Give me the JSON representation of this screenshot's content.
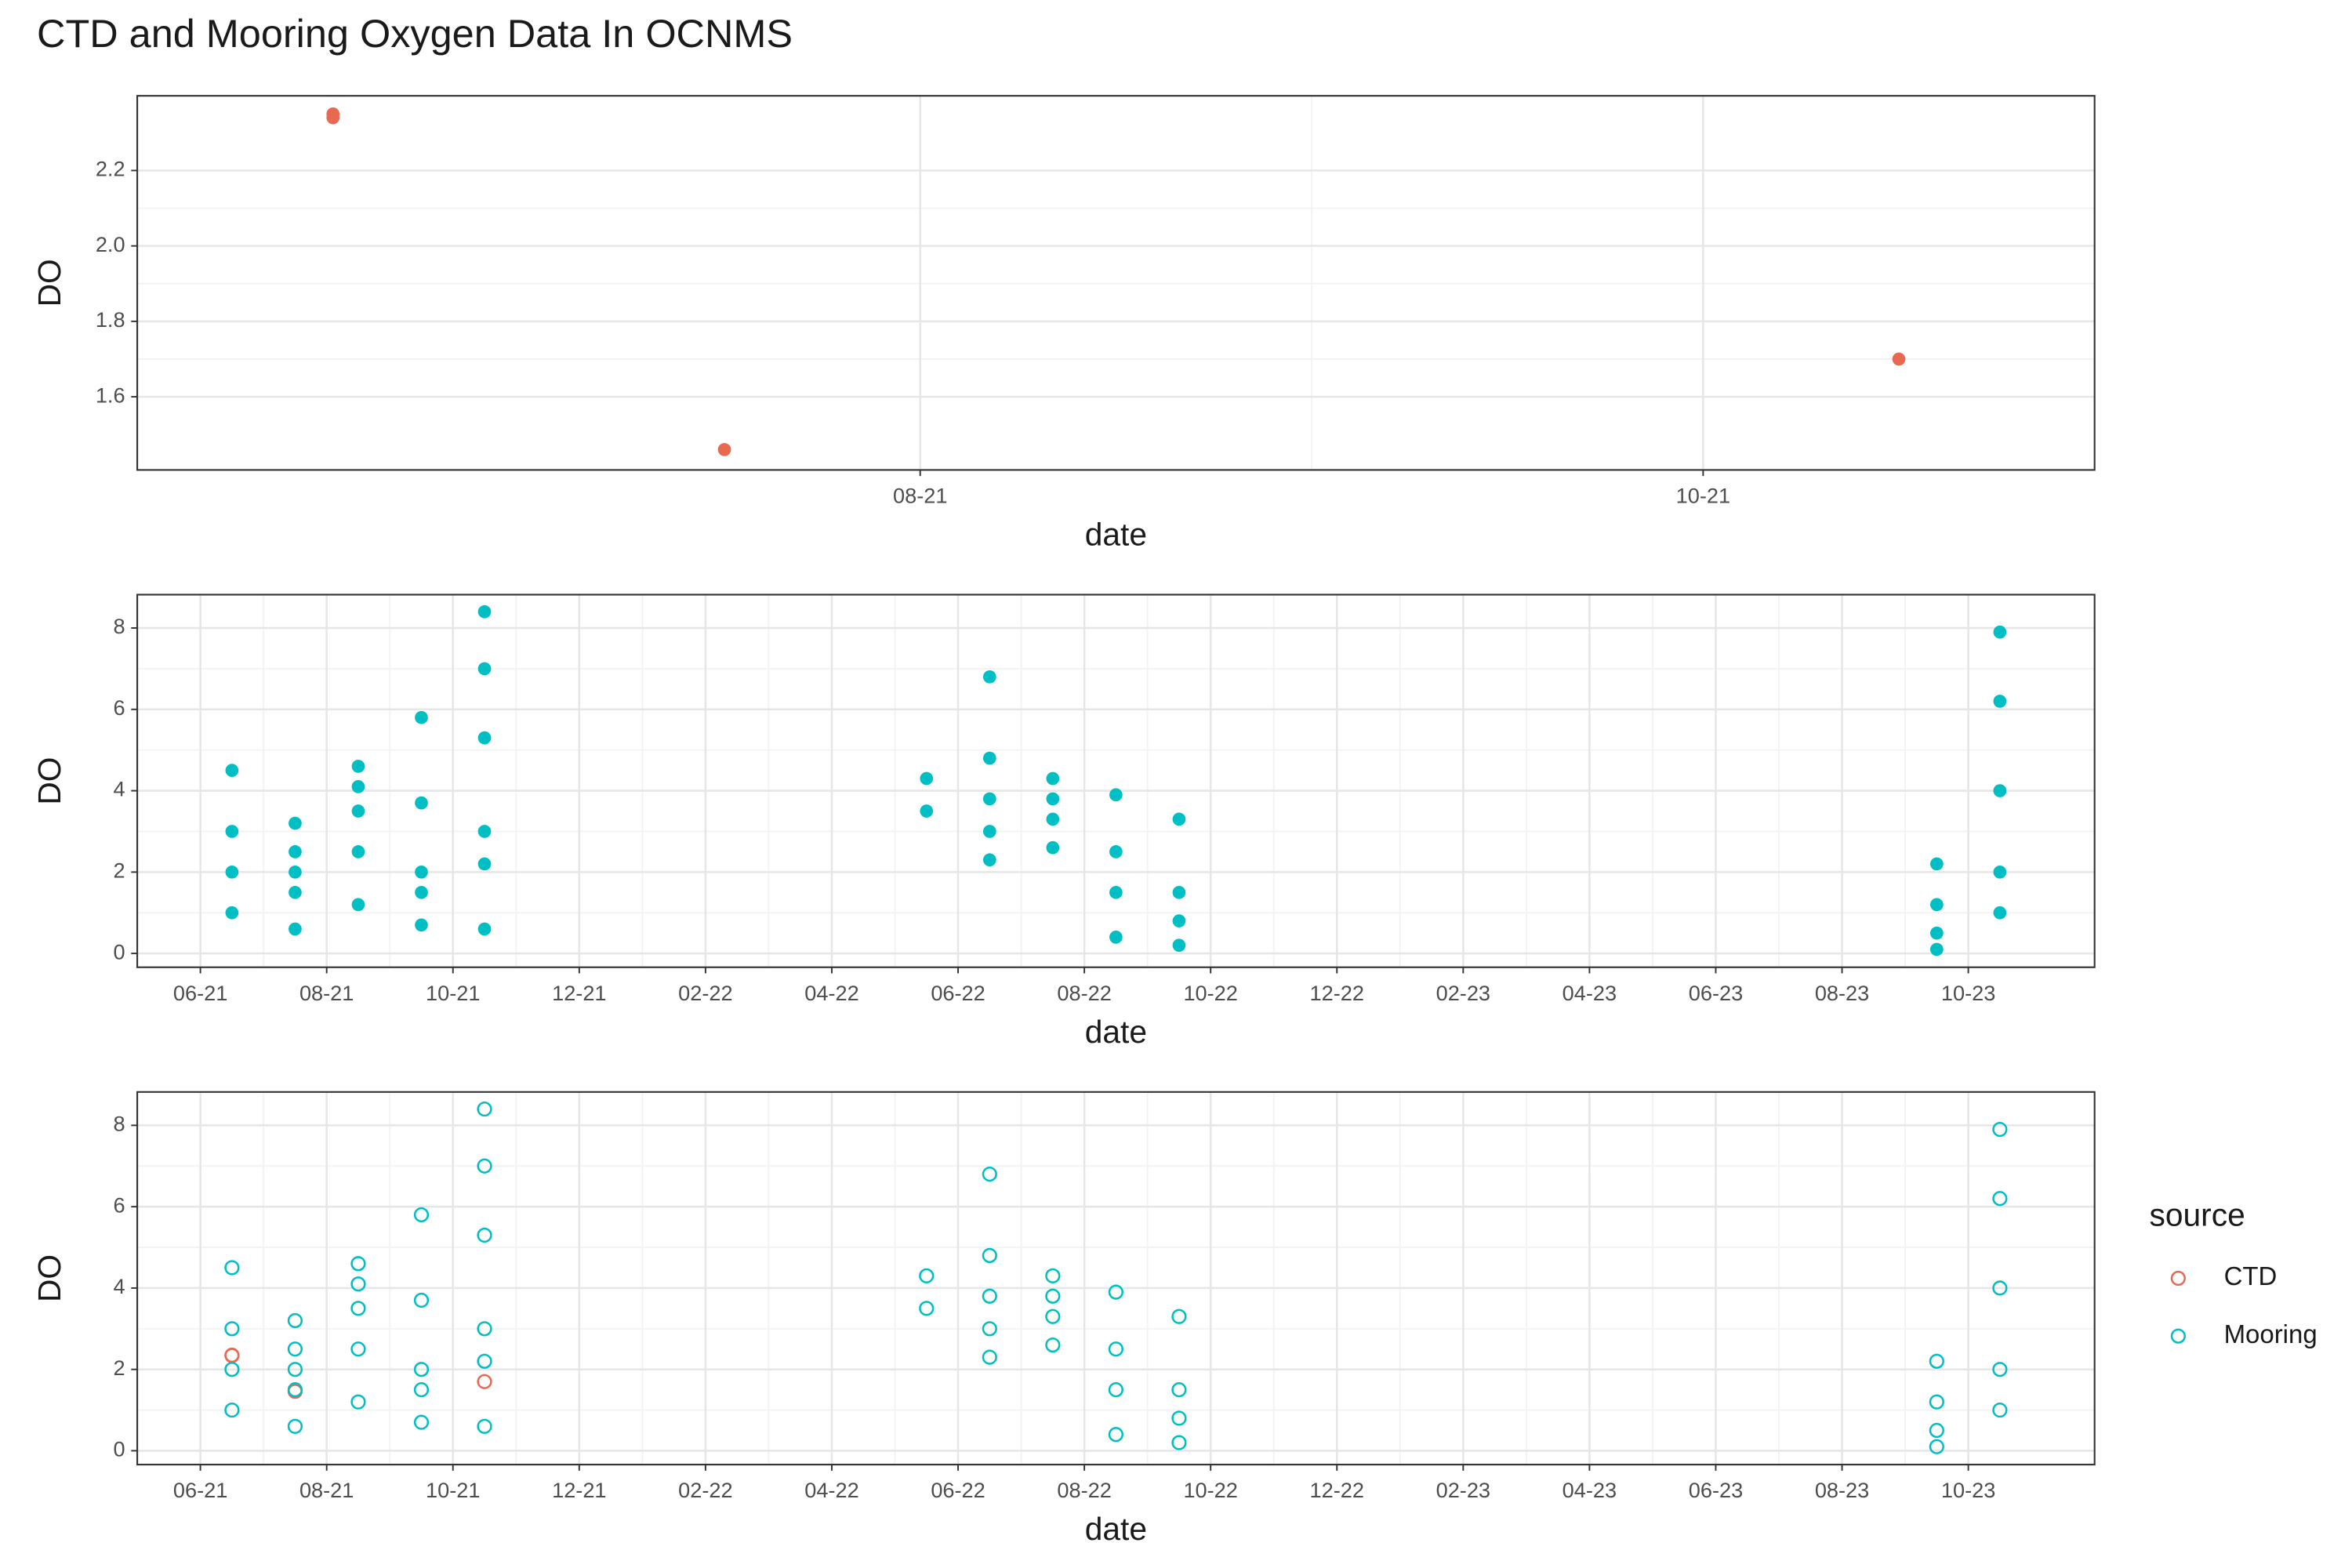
{
  "title": "CTD and Mooring Oxygen Data In OCNMS",
  "chart_data": [
    {
      "type": "scatter",
      "marker": "filled",
      "x_label": "date",
      "y_label": "DO",
      "x": [
        "2021-06",
        "2021-06",
        "2021-07",
        "2021-10"
      ],
      "values": [
        2.35,
        2.34,
        1.46,
        1.7
      ],
      "color": "#e8694f",
      "xlim": [
        "2021-06",
        "2021-10"
      ],
      "xticks": [
        {
          "value": "2021-08",
          "label": "08-21"
        },
        {
          "value": "2021-10",
          "label": "10-21"
        }
      ],
      "ylim": [
        1.406,
        2.398
      ],
      "yticks": [
        1.6,
        1.8,
        {
          "value": 2,
          "label": "2.0"
        },
        2.2
      ],
      "grid": true
    },
    {
      "type": "scatter",
      "marker": "filled",
      "x_label": "date",
      "y_label": "DO",
      "color": "#00bfc4",
      "x": [
        "2021-06",
        "2021-06",
        "2021-06",
        "2021-06",
        "2021-07",
        "2021-07",
        "2021-07",
        "2021-07",
        "2021-07",
        "2021-08",
        "2021-08",
        "2021-08",
        "2021-08",
        "2021-08",
        "2021-09",
        "2021-09",
        "2021-09",
        "2021-09",
        "2021-09",
        "2021-10",
        "2021-10",
        "2021-10",
        "2021-10",
        "2021-10",
        "2021-10",
        "2022-05",
        "2022-05",
        "2022-06",
        "2022-06",
        "2022-06",
        "2022-06",
        "2022-06",
        "2022-07",
        "2022-07",
        "2022-07",
        "2022-07",
        "2022-08",
        "2022-08",
        "2022-08",
        "2022-08",
        "2022-09",
        "2022-09",
        "2022-09",
        "2022-09",
        "2023-09",
        "2023-09",
        "2023-09",
        "2023-09",
        "2023-10",
        "2023-10",
        "2023-10",
        "2023-10",
        "2023-10"
      ],
      "values": [
        3.0,
        4.5,
        2.0,
        1.0,
        2.5,
        3.2,
        0.6,
        1.5,
        2.0,
        2.5,
        4.6,
        1.2,
        4.1,
        3.5,
        2.0,
        3.7,
        0.7,
        5.8,
        1.5,
        3.0,
        8.4,
        0.6,
        7.0,
        5.3,
        2.2,
        3.5,
        4.3,
        3.8,
        6.8,
        2.3,
        4.8,
        3.0,
        3.3,
        4.3,
        2.6,
        3.8,
        2.5,
        3.9,
        0.4,
        1.5,
        1.5,
        3.3,
        0.2,
        0.8,
        0.1,
        1.2,
        2.2,
        0.5,
        2.0,
        7.9,
        6.2,
        4.0,
        1.0
      ],
      "xlim": [
        "2021-05",
        "2023-11"
      ],
      "xticks": [
        {
          "value": "2021-06",
          "label": "06-21"
        },
        {
          "value": "2021-08",
          "label": "08-21"
        },
        {
          "value": "2021-10",
          "label": "10-21"
        },
        {
          "value": "2021-12",
          "label": "12-21"
        },
        {
          "value": "2022-02",
          "label": "02-22"
        },
        {
          "value": "2022-04",
          "label": "04-22"
        },
        {
          "value": "2022-06",
          "label": "06-22"
        },
        {
          "value": "2022-08",
          "label": "08-22"
        },
        {
          "value": "2022-10",
          "label": "10-22"
        },
        {
          "value": "2022-12",
          "label": "12-22"
        },
        {
          "value": "2023-02",
          "label": "02-23"
        },
        {
          "value": "2023-04",
          "label": "04-23"
        },
        {
          "value": "2023-06",
          "label": "06-23"
        },
        {
          "value": "2023-08",
          "label": "08-23"
        },
        {
          "value": "2023-10",
          "label": "10-23"
        }
      ],
      "ylim": [
        -0.34,
        8.82
      ],
      "yticks": [
        0,
        2,
        4,
        6,
        8
      ],
      "grid": true
    },
    {
      "type": "scatter",
      "marker": "open",
      "x_label": "date",
      "y_label": "DO",
      "legend_title": "source",
      "legend": "right",
      "series": [
        {
          "name": "CTD",
          "color": "#e8694f",
          "x": [
            "2021-06",
            "2021-06",
            "2021-07",
            "2021-10"
          ],
          "values": [
            2.35,
            2.34,
            1.46,
            1.7
          ]
        },
        {
          "name": "Mooring",
          "color": "#00bfc4",
          "x": [
            "2021-06",
            "2021-06",
            "2021-06",
            "2021-06",
            "2021-07",
            "2021-07",
            "2021-07",
            "2021-07",
            "2021-07",
            "2021-08",
            "2021-08",
            "2021-08",
            "2021-08",
            "2021-08",
            "2021-09",
            "2021-09",
            "2021-09",
            "2021-09",
            "2021-09",
            "2021-10",
            "2021-10",
            "2021-10",
            "2021-10",
            "2021-10",
            "2021-10",
            "2022-05",
            "2022-05",
            "2022-06",
            "2022-06",
            "2022-06",
            "2022-06",
            "2022-06",
            "2022-07",
            "2022-07",
            "2022-07",
            "2022-07",
            "2022-08",
            "2022-08",
            "2022-08",
            "2022-08",
            "2022-09",
            "2022-09",
            "2022-09",
            "2022-09",
            "2023-09",
            "2023-09",
            "2023-09",
            "2023-09",
            "2023-10",
            "2023-10",
            "2023-10",
            "2023-10",
            "2023-10"
          ],
          "values": [
            3.0,
            4.5,
            2.0,
            1.0,
            2.5,
            3.2,
            0.6,
            1.5,
            2.0,
            2.5,
            4.6,
            1.2,
            4.1,
            3.5,
            2.0,
            3.7,
            0.7,
            5.8,
            1.5,
            3.0,
            8.4,
            0.6,
            7.0,
            5.3,
            2.2,
            3.5,
            4.3,
            3.8,
            6.8,
            2.3,
            4.8,
            3.0,
            3.3,
            4.3,
            2.6,
            3.8,
            2.5,
            3.9,
            0.4,
            1.5,
            1.5,
            3.3,
            0.2,
            0.8,
            0.1,
            1.2,
            2.2,
            0.5,
            2.0,
            7.9,
            6.2,
            4.0,
            1.0
          ]
        }
      ],
      "xlim": [
        "2021-05",
        "2023-11"
      ],
      "xticks": [
        {
          "value": "2021-06",
          "label": "06-21"
        },
        {
          "value": "2021-08",
          "label": "08-21"
        },
        {
          "value": "2021-10",
          "label": "10-21"
        },
        {
          "value": "2021-12",
          "label": "12-21"
        },
        {
          "value": "2022-02",
          "label": "02-22"
        },
        {
          "value": "2022-04",
          "label": "04-22"
        },
        {
          "value": "2022-06",
          "label": "06-22"
        },
        {
          "value": "2022-08",
          "label": "08-22"
        },
        {
          "value": "2022-10",
          "label": "10-22"
        },
        {
          "value": "2022-12",
          "label": "12-22"
        },
        {
          "value": "2023-02",
          "label": "02-23"
        },
        {
          "value": "2023-04",
          "label": "04-23"
        },
        {
          "value": "2023-06",
          "label": "06-23"
        },
        {
          "value": "2023-08",
          "label": "08-23"
        },
        {
          "value": "2023-10",
          "label": "10-23"
        }
      ],
      "ylim": [
        -0.34,
        8.82
      ],
      "yticks": [
        0,
        2,
        4,
        6,
        8
      ],
      "grid": true
    }
  ]
}
